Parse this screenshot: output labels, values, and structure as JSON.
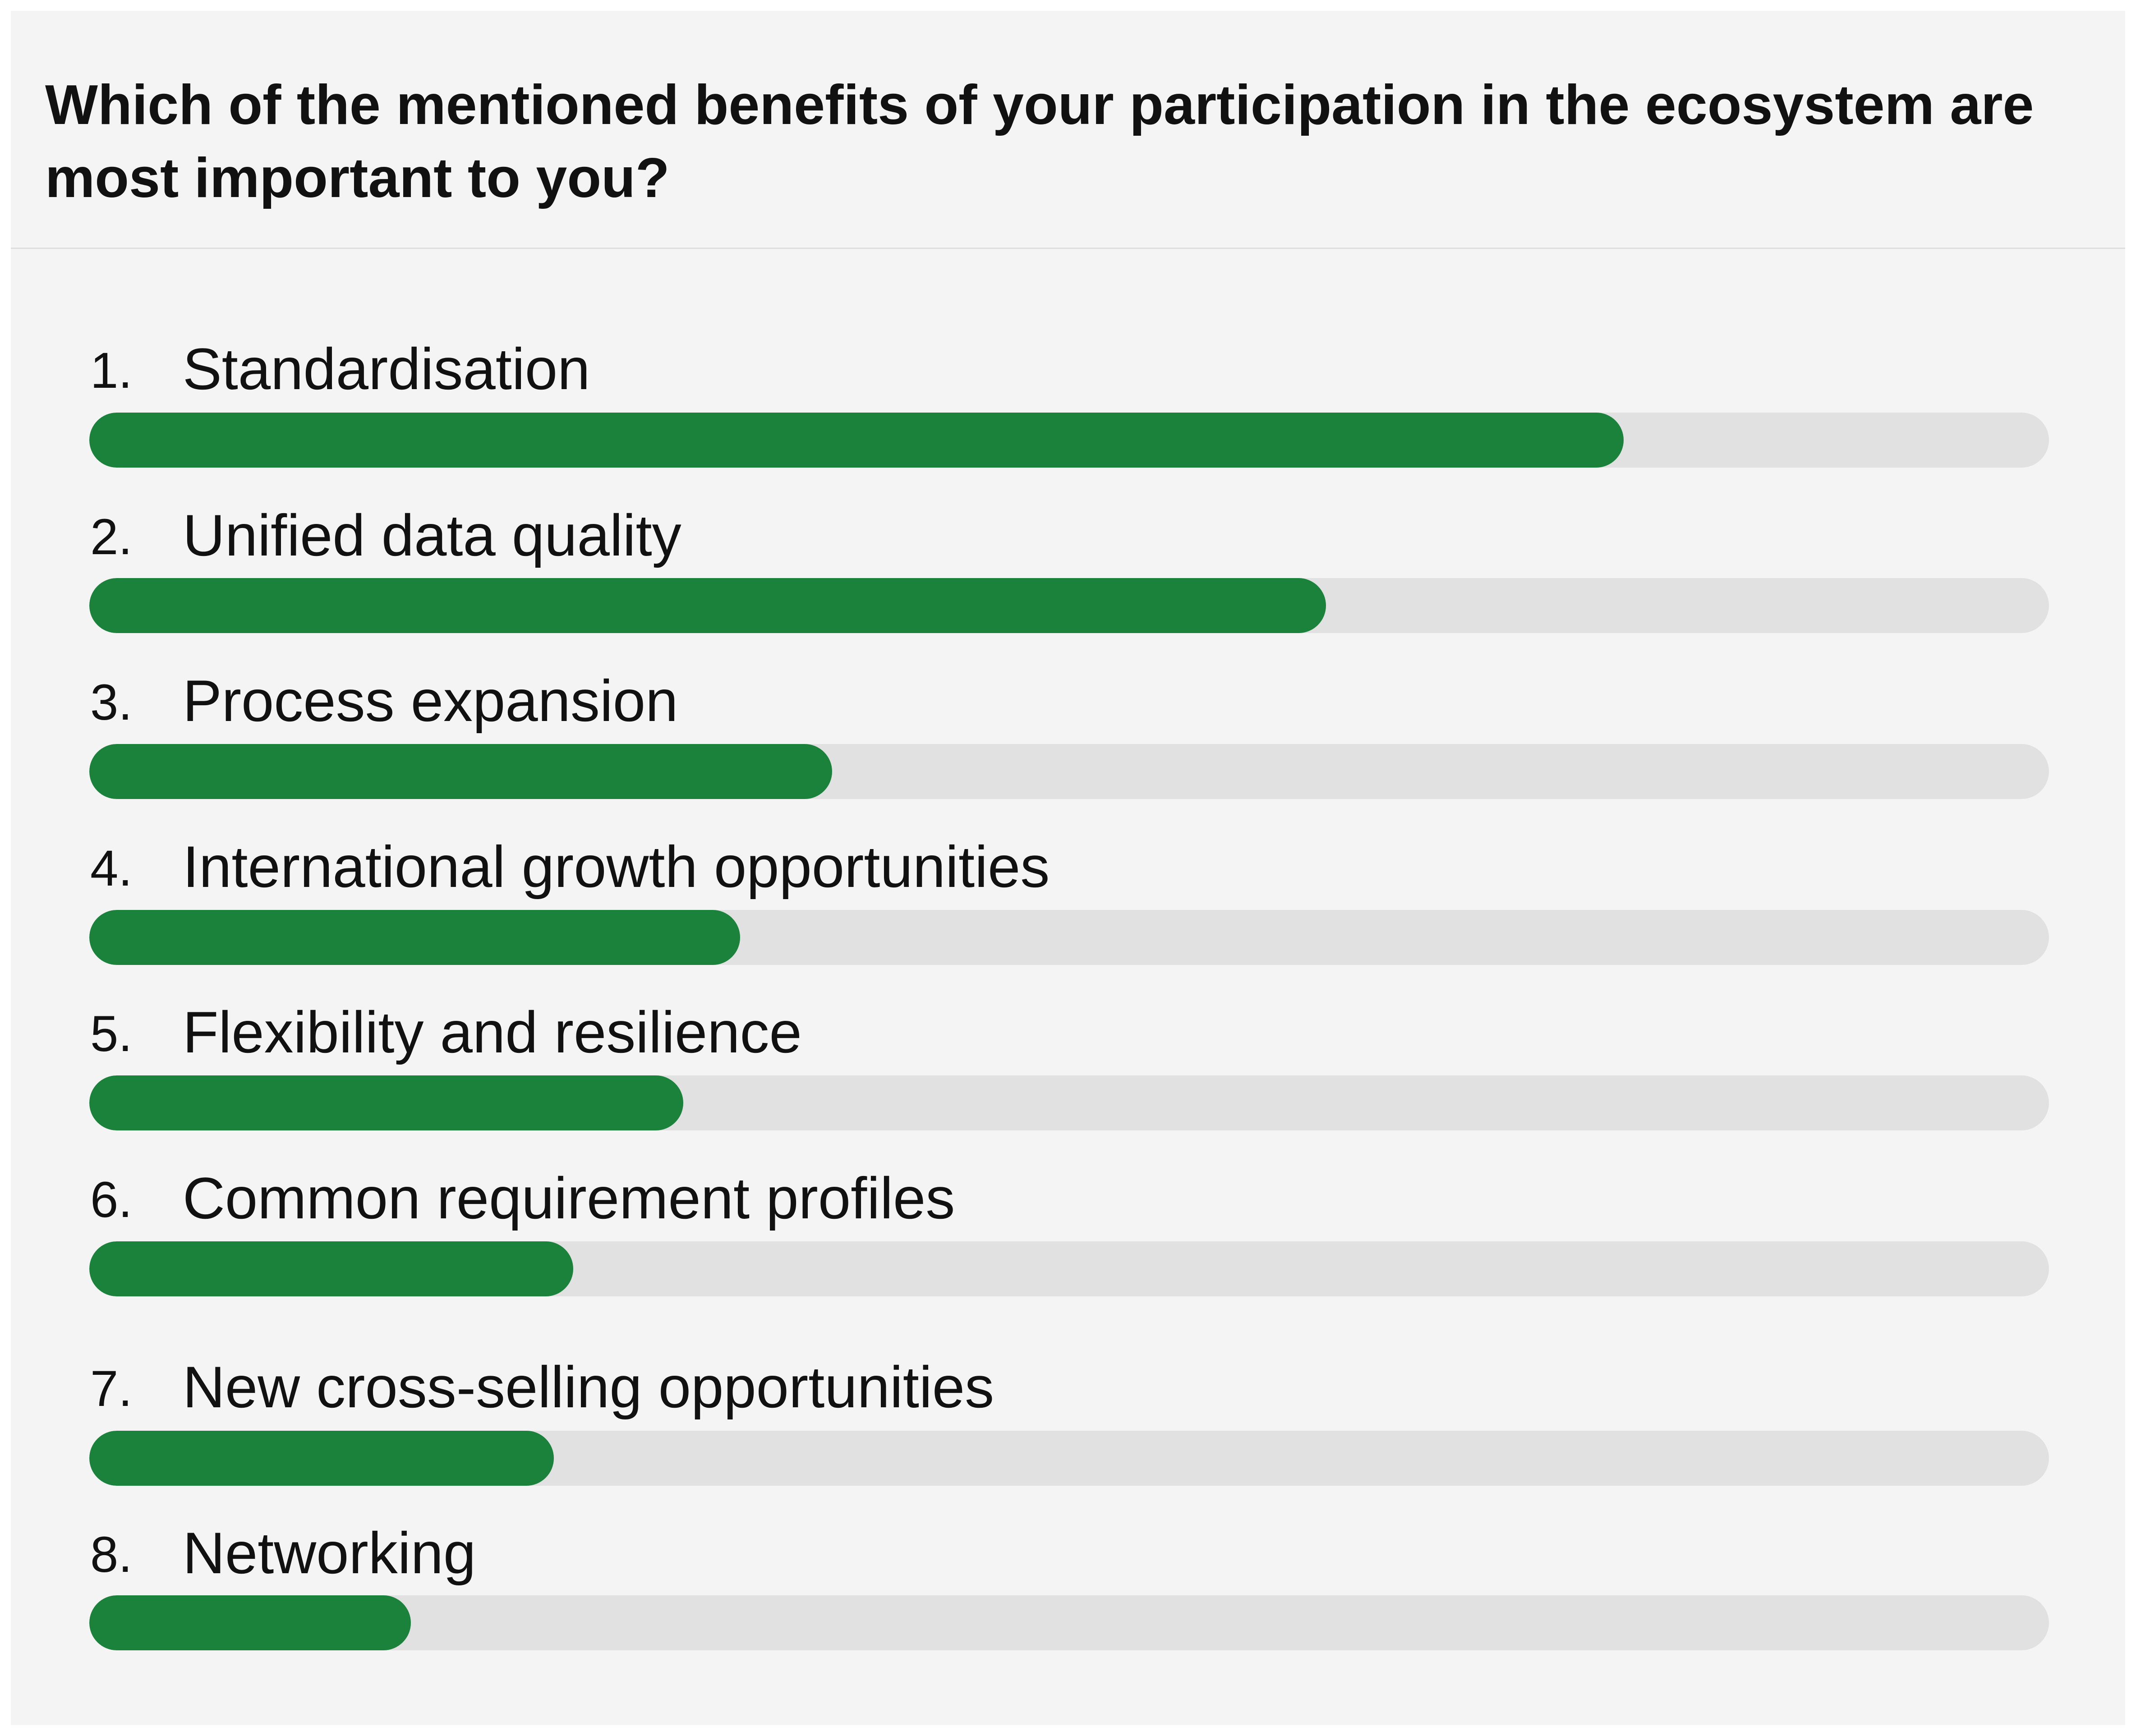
{
  "title": "Which of the mentioned benefits of your participation in the ecosystem are most important to you?",
  "colors": {
    "background": "#f4f4f4",
    "track": "#e1e1e1",
    "fill": "#1b823b",
    "text": "#111111"
  },
  "chart_data": {
    "type": "bar",
    "orientation": "horizontal",
    "title": "Which of the mentioned benefits of your participation in the ecosystem are most important to you?",
    "ranks": [
      "1.",
      "2.",
      "3.",
      "4.",
      "5.",
      "6.",
      "7.",
      "8."
    ],
    "categories": [
      "Standardisation",
      "Unified data quality",
      "Process expansion",
      "International growth opportunities",
      "Flexibility and resilience",
      "Common requirement profiles",
      "New cross-selling opportunities",
      "Networking"
    ],
    "values": [
      0.783,
      0.631,
      0.379,
      0.332,
      0.303,
      0.247,
      0.237,
      0.164
    ],
    "value_unit": "fraction of bar filled",
    "xlim": [
      0,
      1
    ],
    "grid": false,
    "legend": "none"
  }
}
